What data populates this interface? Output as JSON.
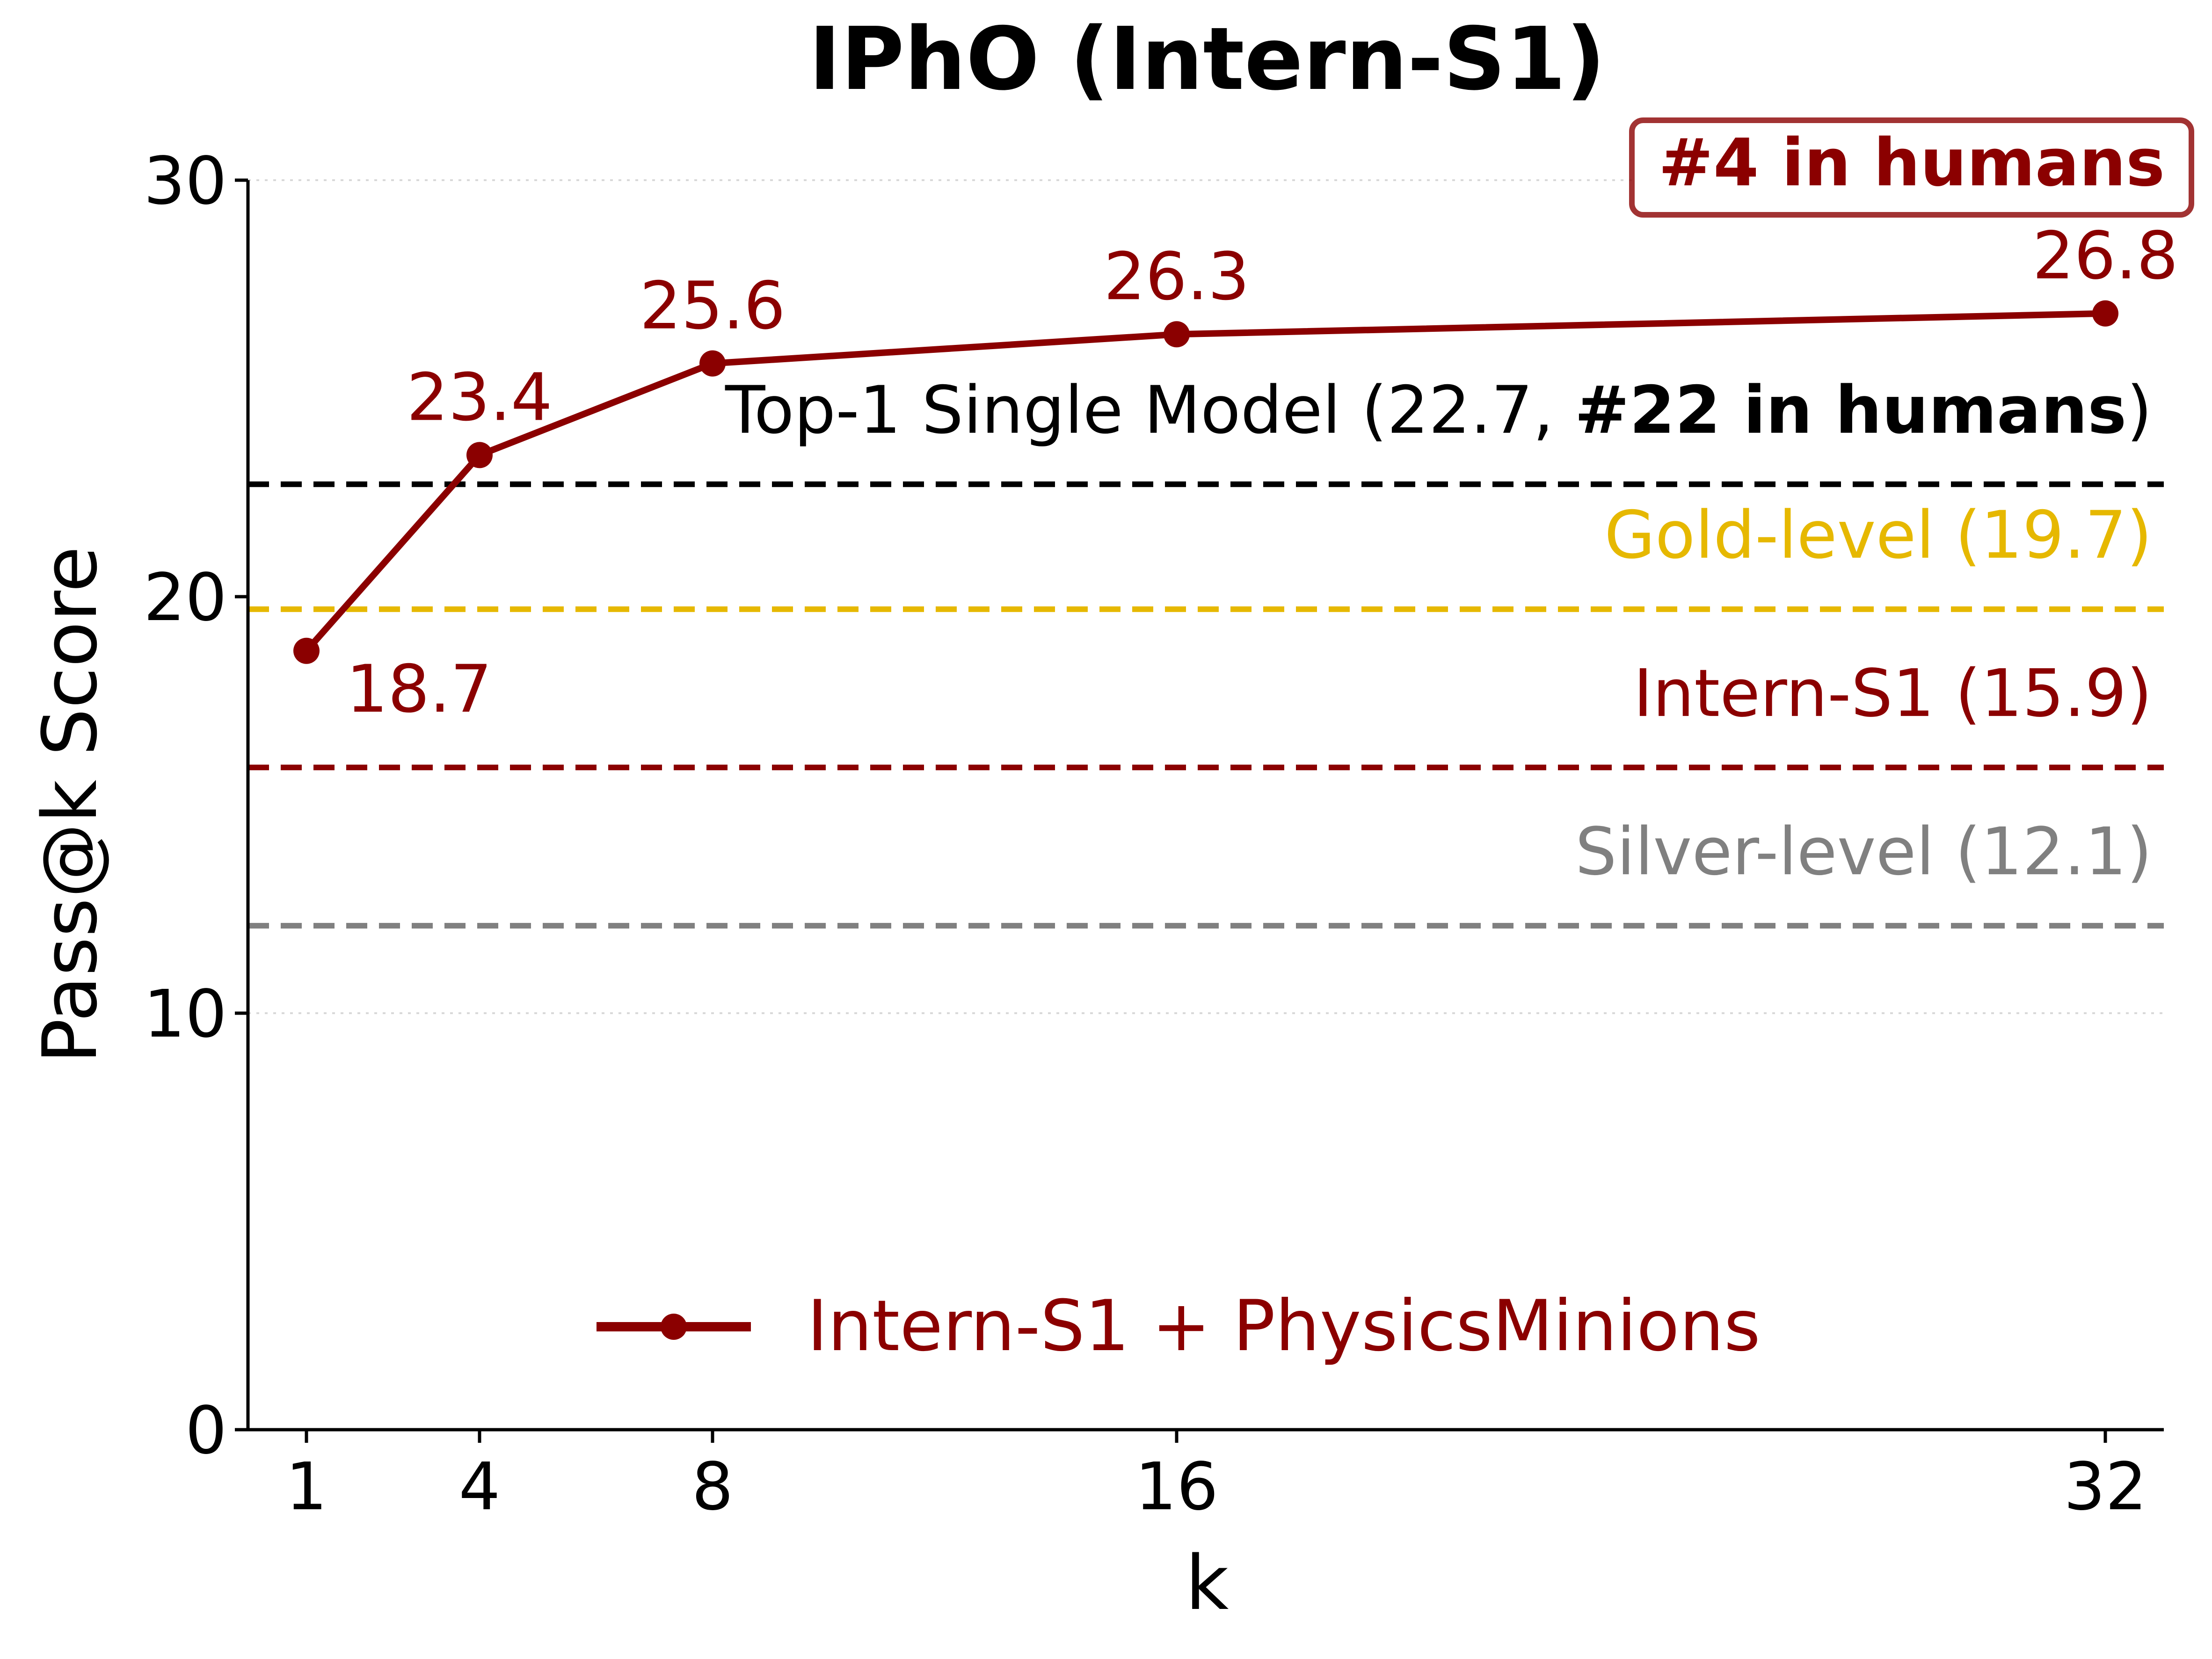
{
  "chart_data": {
    "type": "line",
    "title": "IPhO (Intern-S1)",
    "xlabel": "k",
    "ylabel": "Pass@k Score",
    "x": [
      1,
      4,
      8,
      16,
      32
    ],
    "xticks": [
      "1",
      "4",
      "8",
      "16",
      "32"
    ],
    "yticks": [
      "0",
      "10",
      "20",
      "30"
    ],
    "ylim": [
      0,
      30
    ],
    "grid": "dotted horizontal at 10 and 30",
    "legend_position": "bottom-center",
    "series": [
      {
        "name": "Intern-S1 + PhysicsMinions",
        "values": [
          18.7,
          23.4,
          25.6,
          26.3,
          26.8
        ],
        "labels": [
          "18.7",
          "23.4",
          "25.6",
          "26.3",
          "26.8"
        ],
        "color": "#8b0000"
      }
    ],
    "reference_lines": [
      {
        "value": 22.7,
        "label_prefix": "Top-1 Single Model (22.7, ",
        "label_bold": "#22 in humans",
        "label_suffix": ")",
        "color": "#000000"
      },
      {
        "value": 19.7,
        "label": "Gold-level (19.7)",
        "color": "#e6b800"
      },
      {
        "value": 15.9,
        "label": "Intern-S1 (15.9)",
        "color": "#8b0000"
      },
      {
        "value": 12.1,
        "label": "Silver-level (12.1)",
        "color": "#808080"
      }
    ],
    "annotation": {
      "text": "#4 in humans",
      "color": "#8b0000"
    }
  }
}
